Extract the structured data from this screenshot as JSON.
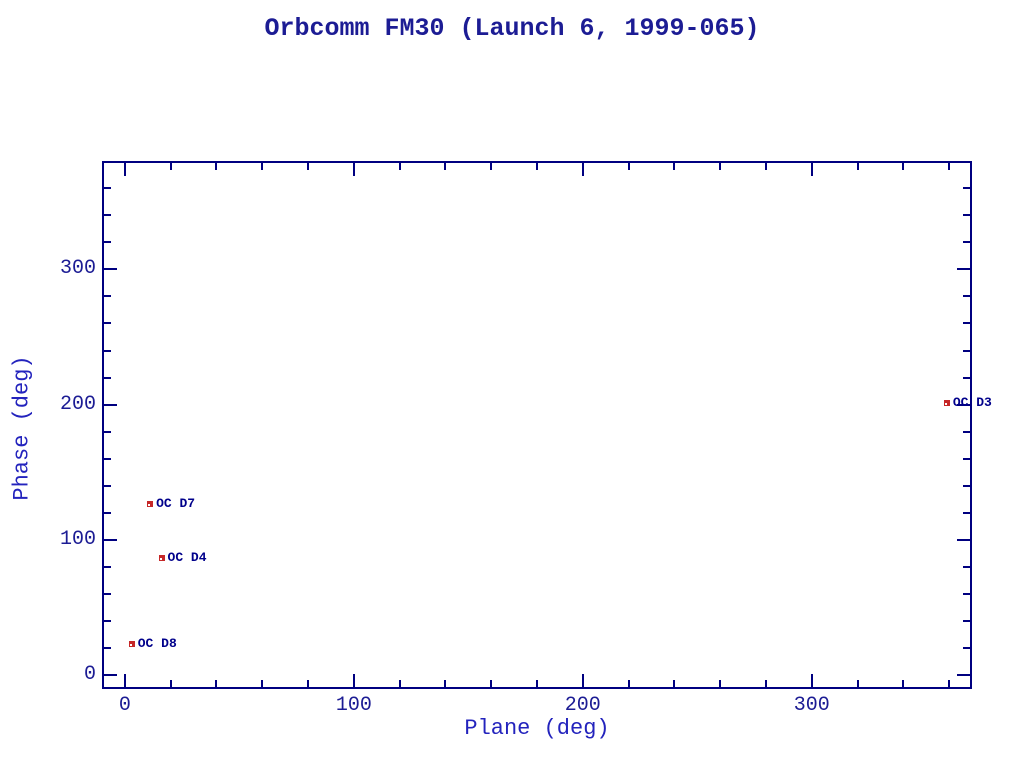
{
  "title": "Orbcomm FM30 (Launch 6, 1999-065)",
  "chart_data": {
    "type": "scatter",
    "title": "Orbcomm FM30 (Launch 6, 1999-065)",
    "xlabel": "Plane (deg)",
    "ylabel": "Phase (deg)",
    "xlim": [
      -10,
      370
    ],
    "ylim": [
      -10,
      380
    ],
    "x_major_ticks": [
      0,
      100,
      200,
      300
    ],
    "y_major_ticks": [
      0,
      100,
      200,
      300
    ],
    "minor_tick_step": 20,
    "grid": false,
    "legend": false,
    "marker": "filled-square",
    "points": [
      {
        "label": "OC D8",
        "plane": 3,
        "phase": 23
      },
      {
        "label": "OC D7",
        "plane": 11,
        "phase": 127
      },
      {
        "label": "OC D4",
        "plane": 16,
        "phase": 87
      },
      {
        "label": "OC D3",
        "plane": 359,
        "phase": 201
      }
    ],
    "colors": {
      "axis": "#000080",
      "title": "#1c1c94",
      "tick_label": "#1c1c94",
      "axis_label": "#2323bd",
      "point_label": "#00008b",
      "marker": "#c62828"
    }
  }
}
